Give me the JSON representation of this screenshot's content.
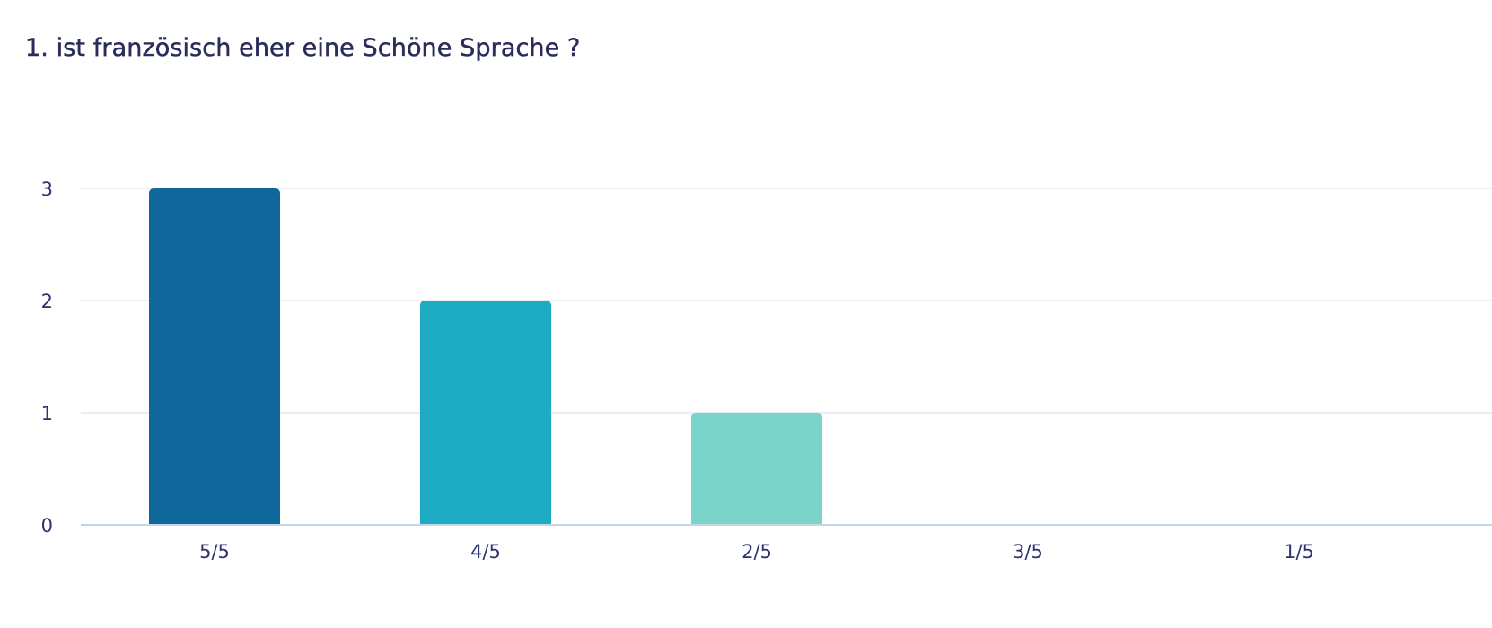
{
  "chart_data": {
    "type": "bar",
    "title": "1. ist französisch eher eine Schöne Sprache ?",
    "xlabel": "",
    "ylabel": "",
    "categories": [
      "5/5",
      "4/5",
      "2/5",
      "3/5",
      "1/5"
    ],
    "values": [
      3,
      2,
      1,
      0,
      0
    ],
    "colors": [
      "#10679b",
      "#1dabc3",
      "#7bd4ca",
      "#b9e6e0",
      "#d7eef0"
    ],
    "ylim": [
      0,
      3
    ],
    "yticks": [
      0,
      1,
      2,
      3
    ],
    "grid": true,
    "legend": "none"
  }
}
